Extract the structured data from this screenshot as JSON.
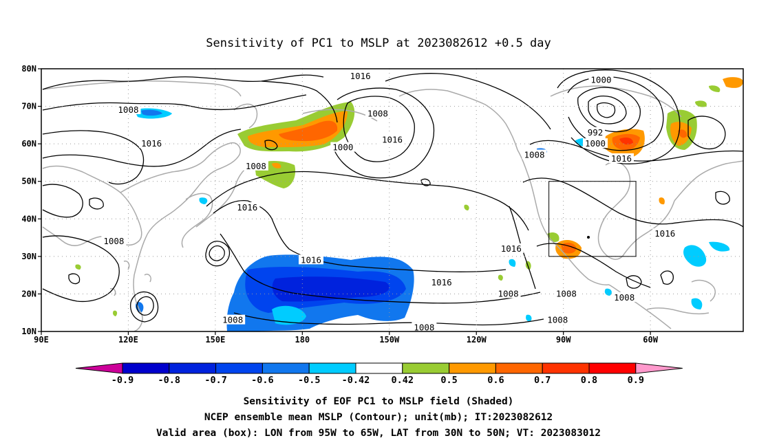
{
  "title": "Sensitivity of PC1 to MSLP at 2023082612 +0.5 day",
  "map": {
    "lat_ticks": [
      {
        "lat": 80,
        "label": "80N"
      },
      {
        "lat": 70,
        "label": "70N"
      },
      {
        "lat": 60,
        "label": "60N"
      },
      {
        "lat": 50,
        "label": "50N"
      },
      {
        "lat": 40,
        "label": "40N"
      },
      {
        "lat": 30,
        "label": "30N"
      },
      {
        "lat": 20,
        "label": "20N"
      },
      {
        "lat": 10,
        "label": "10N"
      }
    ],
    "lon_ticks": [
      {
        "lon": 90,
        "label": "90E"
      },
      {
        "lon": 120,
        "label": "120E"
      },
      {
        "lon": 150,
        "label": "150E"
      },
      {
        "lon": 180,
        "label": "180"
      },
      {
        "lon": 210,
        "label": "150W"
      },
      {
        "lon": 240,
        "label": "120W"
      },
      {
        "lon": 270,
        "label": "90W"
      },
      {
        "lon": 300,
        "label": "60W"
      }
    ],
    "contour_labels": [
      {
        "text": "1016",
        "lon": 200,
        "lat": 78
      },
      {
        "text": "1000",
        "lon": 283,
        "lat": 77
      },
      {
        "text": "1008",
        "lon": 120,
        "lat": 69
      },
      {
        "text": "1008",
        "lon": 206,
        "lat": 68
      },
      {
        "text": "992",
        "lon": 281,
        "lat": 63
      },
      {
        "text": "1000",
        "lon": 281,
        "lat": 60
      },
      {
        "text": "1016",
        "lon": 128,
        "lat": 60
      },
      {
        "text": "1016",
        "lon": 211,
        "lat": 61
      },
      {
        "text": "1000",
        "lon": 194,
        "lat": 59
      },
      {
        "text": "1008",
        "lon": 260,
        "lat": 57
      },
      {
        "text": "1016",
        "lon": 290,
        "lat": 56
      },
      {
        "text": "1008",
        "lon": 164,
        "lat": 54
      },
      {
        "text": "1016",
        "lon": 161,
        "lat": 43
      },
      {
        "text": "1008",
        "lon": 115,
        "lat": 34
      },
      {
        "text": "1016",
        "lon": 252,
        "lat": 32
      },
      {
        "text": "1016",
        "lon": 183,
        "lat": 29
      },
      {
        "text": "1016",
        "lon": 305,
        "lat": 36
      },
      {
        "text": "1016",
        "lon": 228,
        "lat": 23
      },
      {
        "text": "1008",
        "lon": 251,
        "lat": 20
      },
      {
        "text": "1008",
        "lon": 271,
        "lat": 20
      },
      {
        "text": "1008",
        "lon": 291,
        "lat": 19
      },
      {
        "text": "1008",
        "lon": 156,
        "lat": 13
      },
      {
        "text": "1008",
        "lon": 268,
        "lat": 13
      },
      {
        "text": "1008",
        "lon": 222,
        "lat": 11
      }
    ],
    "valid_box": {
      "lon_min": 265,
      "lon_max": 295,
      "lat_min": 30,
      "lat_max": 50
    },
    "colors": {
      "neg_09": "#cc0099",
      "neg_08": "#0000cc",
      "neg_07": "#0022dd",
      "neg_06": "#0044ee",
      "neg_05": "#1177ee",
      "neg_042": "#00ccff",
      "neutral": "#ffffff",
      "pos_05": "#99cc33",
      "pos_06": "#ff9900",
      "pos_07": "#ff6600",
      "pos_08": "#ff3300",
      "pos_09": "#ff0000",
      "pos_max": "#ff99cc",
      "coast": "#aaaaaa",
      "contour": "#000000"
    }
  },
  "colorbar": {
    "labels": [
      "-0.9",
      "-0.8",
      "-0.7",
      "-0.6",
      "-0.5",
      "-0.42",
      "0.42",
      "0.5",
      "0.6",
      "0.7",
      "0.8",
      "0.9"
    ]
  },
  "captions": [
    "Sensitivity of EOF PC1 to MSLP field (Shaded)",
    "NCEP ensemble mean MSLP (Contour); unit(mb); IT:2023082612",
    "Valid area (box): LON from 95W to 65W, LAT from 30N to 50N; VT: 2023083012"
  ]
}
